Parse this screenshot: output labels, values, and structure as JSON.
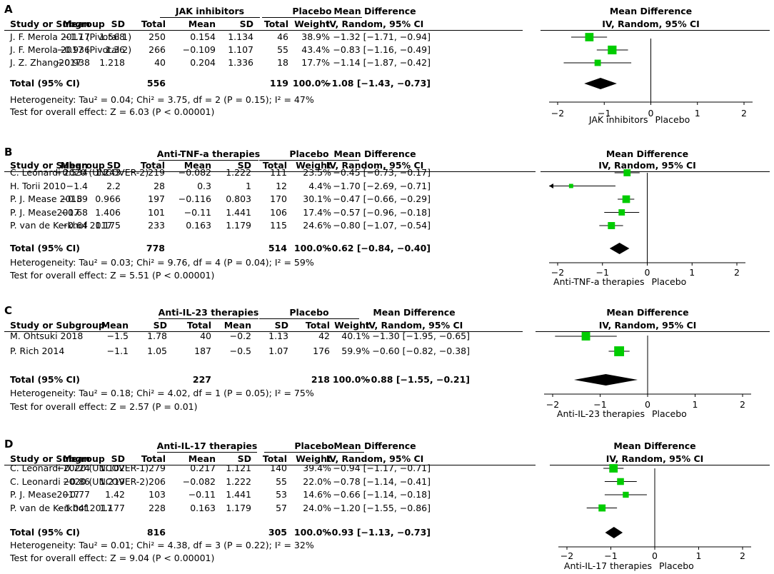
{
  "colors": {
    "marker": "#00cc00",
    "line": "#000000",
    "diamond": "#000000"
  },
  "panels": [
    {
      "label": "A",
      "group1": "JAK inhibitors",
      "group2": "Placebo",
      "study_col": "Study or Subgroup",
      "mean_col": "Mean",
      "sd_col": "SD",
      "total_col": "Total",
      "weight_col": "Weight",
      "md_col1": "Mean Difference",
      "md_col2": "IV, Random, 95% CI",
      "plot_title1": "Mean Difference",
      "plot_title2": "IV, Random, 95% CI",
      "studies": [
        {
          "name": "J. F. Merola 2017 (Pivotal 1)",
          "m1": "−1.17",
          "sd1": "1.568",
          "n1": "250",
          "m2": "0.154",
          "sd2": "1.134",
          "n2": "46",
          "weight": "38.9%",
          "ci": "−1.32 [−1.71, −0.94]",
          "est": -1.32,
          "lo": -1.71,
          "hi": -0.94,
          "w": 38.9
        },
        {
          "name": "J. F. Merola 2017 (Pivotal 2)",
          "m1": "−0.936",
          "sd1": "1.36",
          "n1": "266",
          "m2": "−0.109",
          "sd2": "1.107",
          "n2": "55",
          "weight": "43.4%",
          "ci": "−0.83 [−1.16, −0.49]",
          "est": -0.83,
          "lo": -1.16,
          "hi": -0.49,
          "w": 43.4
        },
        {
          "name": "J. Z. Zhang2017",
          "m1": "−0.938",
          "sd1": "1.218",
          "n1": "40",
          "m2": "0.204",
          "sd2": "1.336",
          "n2": "18",
          "weight": "17.7%",
          "ci": "−1.14 [−1.87, −0.42]",
          "est": -1.14,
          "lo": -1.87,
          "hi": -0.42,
          "w": 17.7
        }
      ],
      "total_label": "Total (95% CI)",
      "total_n1": "556",
      "total_n2": "119",
      "total_weight": "100.0%",
      "total_ci": "−1.08 [−1.43, −0.73]",
      "total_est": -1.08,
      "total_lo": -1.43,
      "total_hi": -0.73,
      "heterogeneity": "Heterogeneity: Tau² = 0.04; Chi² = 3.75, df = 2 (P = 0.15); I² = 47%",
      "overall": "Test for overall effect: Z = 6.03 (P < 0.00001)",
      "ticks": [
        "−2",
        "−1",
        "0",
        "1",
        "2"
      ],
      "favors_left": "JAK inhibitors",
      "favors_right": "Placebo"
    },
    {
      "label": "B",
      "group1": "Anti-TNF-a therapies",
      "group2": "Placebo",
      "study_col": "Study or Subgroup",
      "mean_col": "Mean",
      "sd_col": "SD",
      "total_col": "Total",
      "weight_col": "Weight",
      "md_col1": "Mean Difference",
      "md_col2": "IV, Random, 95% CI",
      "plot_title1": "Mean Difference",
      "plot_title2": "IV, Random, 95% CI",
      "studies": [
        {
          "name": "C. Leonardi 2020 (UNCOVER-2)",
          "m1": "−0.534",
          "sd1": "1.243",
          "n1": "219",
          "m2": "−0.082",
          "sd2": "1.222",
          "n2": "111",
          "weight": "23.5%",
          "ci": "−0.45 [−0.73, −0.17]",
          "est": -0.45,
          "lo": -0.73,
          "hi": -0.17,
          "w": 23.5
        },
        {
          "name": "H. Torii 2010",
          "m1": "−1.4",
          "sd1": "2.2",
          "n1": "28",
          "m2": "0.3",
          "sd2": "1",
          "n2": "12",
          "weight": "4.4%",
          "ci": "−1.70 [−2.69, −0.71]",
          "est": -1.7,
          "lo": -2.69,
          "hi": -0.71,
          "w": 4.4
        },
        {
          "name": "P. J. Mease 2018",
          "m1": "−0.59",
          "sd1": "0.966",
          "n1": "197",
          "m2": "−0.116",
          "sd2": "0.803",
          "n2": "170",
          "weight": "30.1%",
          "ci": "−0.47 [−0.66, −0.29]",
          "est": -0.47,
          "lo": -0.66,
          "hi": -0.29,
          "w": 30.1
        },
        {
          "name": "P. J. Mease2017",
          "m1": "−0.68",
          "sd1": "1.406",
          "n1": "101",
          "m2": "−0.11",
          "sd2": "1.441",
          "n2": "106",
          "weight": "17.4%",
          "ci": "−0.57 [−0.96, −0.18]",
          "est": -0.57,
          "lo": -0.96,
          "hi": -0.18,
          "w": 17.4
        },
        {
          "name": "P. van de Kerkhof 2017",
          "m1": "−0.64",
          "sd1": "1.175",
          "n1": "233",
          "m2": "0.163",
          "sd2": "1.179",
          "n2": "115",
          "weight": "24.6%",
          "ci": "−0.80 [−1.07, −0.54]",
          "est": -0.8,
          "lo": -1.07,
          "hi": -0.54,
          "w": 24.6
        }
      ],
      "total_label": "Total (95% CI)",
      "total_n1": "778",
      "total_n2": "514",
      "total_weight": "100.0%",
      "total_ci": "−0.62 [−0.84, −0.40]",
      "total_est": -0.62,
      "total_lo": -0.84,
      "total_hi": -0.4,
      "heterogeneity": "Heterogeneity: Tau² = 0.03; Chi² = 9.76, df = 4 (P = 0.04); I² = 59%",
      "overall": "Test for overall effect: Z = 5.51 (P < 0.00001)",
      "ticks": [
        "−2",
        "−1",
        "0",
        "1",
        "2"
      ],
      "favors_left": "Anti-TNF-a therapies",
      "favors_right": "Placebo"
    },
    {
      "label": "C",
      "group1": "Anti-IL-23 therapies",
      "group2": "Placebo",
      "study_col": "Study or Subgroup",
      "mean_col": "Mean",
      "sd_col": "SD",
      "total_col": "Total",
      "weight_col": "Weight",
      "md_col1": "Mean Difference",
      "md_col2": "IV, Random, 95% CI",
      "plot_title1": "Mean Difference",
      "plot_title2": "IV, Random, 95% CI",
      "studies": [
        {
          "name": "M. Ohtsuki 2018",
          "m1": "−1.5",
          "sd1": "1.78",
          "n1": "40",
          "m2": "−0.2",
          "sd2": "1.13",
          "n2": "42",
          "weight": "40.1%",
          "ci": "−1.30 [−1.95, −0.65]",
          "est": -1.3,
          "lo": -1.95,
          "hi": -0.65,
          "w": 40.1
        },
        {
          "name": "P. Rich 2014",
          "m1": "−1.1",
          "sd1": "1.05",
          "n1": "187",
          "m2": "−0.5",
          "sd2": "1.07",
          "n2": "176",
          "weight": "59.9%",
          "ci": "−0.60 [−0.82, −0.38]",
          "est": -0.6,
          "lo": -0.82,
          "hi": -0.38,
          "w": 59.9
        }
      ],
      "total_label": "Total (95% CI)",
      "total_n1": "227",
      "total_n2": "218",
      "total_weight": "100.0%",
      "total_ci": "−0.88 [−1.55, −0.21]",
      "total_est": -0.88,
      "total_lo": -1.55,
      "total_hi": -0.21,
      "heterogeneity": "Heterogeneity: Tau² = 0.18; Chi² = 4.02, df = 1 (P = 0.05); I² = 75%",
      "overall": "Test for overall effect: Z = 2.57 (P = 0.01)",
      "ticks": [
        "−2",
        "−1",
        "0",
        "1",
        "2"
      ],
      "favors_left": "Anti-IL-23 therapies",
      "favors_right": "Placebo"
    },
    {
      "label": "D",
      "group1": "Anti-IL-17 therapies",
      "group2": "Placebo",
      "study_col": "Study or Subgroup",
      "mean_col": "Mean",
      "sd_col": "SD",
      "total_col": "Total",
      "weight_col": "Weight",
      "md_col1": "Mean Difference",
      "md_col2": "IV, Random, 95% CI",
      "plot_title1": "Mean Difference",
      "plot_title2": "IV, Random, 95% CI",
      "studies": [
        {
          "name": "C. Leonardi 2020 (UNCOVER-1)",
          "m1": "−0.724",
          "sd1": "1.102",
          "n1": "279",
          "m2": "0.217",
          "sd2": "1.121",
          "n2": "140",
          "weight": "39.4%",
          "ci": "−0.94 [−1.17, −0.71]",
          "est": -0.94,
          "lo": -1.17,
          "hi": -0.71,
          "w": 39.4
        },
        {
          "name": "C. Leonardi 2020 (UNCOVER-2)",
          "m1": "−0.86",
          "sd1": "1.219",
          "n1": "206",
          "m2": "−0.082",
          "sd2": "1.222",
          "n2": "55",
          "weight": "22.0%",
          "ci": "−0.78 [−1.14, −0.41]",
          "est": -0.78,
          "lo": -1.14,
          "hi": -0.41,
          "w": 22.0
        },
        {
          "name": "P. J. Mease2017",
          "m1": "−0.77",
          "sd1": "1.42",
          "n1": "103",
          "m2": "−0.11",
          "sd2": "1.441",
          "n2": "53",
          "weight": "14.6%",
          "ci": "−0.66 [−1.14, −0.18]",
          "est": -0.66,
          "lo": -1.14,
          "hi": -0.18,
          "w": 14.6
        },
        {
          "name": "P. van de Kerkhof 2017",
          "m1": "−1.041",
          "sd1": "1.177",
          "n1": "228",
          "m2": "0.163",
          "sd2": "1.179",
          "n2": "57",
          "weight": "24.0%",
          "ci": "−1.20 [−1.55, −0.86]",
          "est": -1.2,
          "lo": -1.55,
          "hi": -0.86,
          "w": 24.0
        }
      ],
      "total_label": "Total (95% CI)",
      "total_n1": "816",
      "total_n2": "305",
      "total_weight": "100.0%",
      "total_ci": "−0.93 [−1.13, −0.73]",
      "total_est": -0.93,
      "total_lo": -1.13,
      "total_hi": -0.73,
      "heterogeneity": "Heterogeneity: Tau² = 0.01; Chi² = 4.38, df = 3 (P = 0.22); I² = 32%",
      "overall": "Test for overall effect: Z = 9.04 (P < 0.00001)",
      "ticks": [
        "−2",
        "−1",
        "0",
        "1",
        "2"
      ],
      "favors_left": "Anti-IL-17 therapies",
      "favors_right": "Placebo"
    }
  ],
  "chart_data": [
    {
      "type": "forest",
      "panel": "A",
      "xlim": [
        -2,
        2
      ],
      "xticks": [
        -2,
        -1,
        0,
        1,
        2
      ],
      "series": [
        {
          "name": "J. F. Merola 2017 (Pivotal 1)",
          "value": -1.32,
          "ci": [
            -1.71,
            -0.94
          ]
        },
        {
          "name": "J. F. Merola 2017 (Pivotal 2)",
          "value": -0.83,
          "ci": [
            -1.16,
            -0.49
          ]
        },
        {
          "name": "J. Z. Zhang2017",
          "value": -1.14,
          "ci": [
            -1.87,
            -0.42
          ]
        },
        {
          "name": "Total (95% CI)",
          "value": -1.08,
          "ci": [
            -1.43,
            -0.73
          ]
        }
      ]
    },
    {
      "type": "forest",
      "panel": "B",
      "xlim": [
        -2,
        2
      ],
      "xticks": [
        -2,
        -1,
        0,
        1,
        2
      ],
      "series": [
        {
          "name": "C. Leonardi 2020 (UNCOVER-2)",
          "value": -0.45,
          "ci": [
            -0.73,
            -0.17
          ]
        },
        {
          "name": "H. Torii 2010",
          "value": -1.7,
          "ci": [
            -2.69,
            -0.71
          ]
        },
        {
          "name": "P. J. Mease 2018",
          "value": -0.47,
          "ci": [
            -0.66,
            -0.29
          ]
        },
        {
          "name": "P. J. Mease2017",
          "value": -0.57,
          "ci": [
            -0.96,
            -0.18
          ]
        },
        {
          "name": "P. van de Kerkhof 2017",
          "value": -0.8,
          "ci": [
            -1.07,
            -0.54
          ]
        },
        {
          "name": "Total (95% CI)",
          "value": -0.62,
          "ci": [
            -0.84,
            -0.4
          ]
        }
      ]
    },
    {
      "type": "forest",
      "panel": "C",
      "xlim": [
        -2,
        2
      ],
      "xticks": [
        -2,
        -1,
        0,
        1,
        2
      ],
      "series": [
        {
          "name": "M. Ohtsuki 2018",
          "value": -1.3,
          "ci": [
            -1.95,
            -0.65
          ]
        },
        {
          "name": "P. Rich 2014",
          "value": -0.6,
          "ci": [
            -0.82,
            -0.38
          ]
        },
        {
          "name": "Total (95% CI)",
          "value": -0.88,
          "ci": [
            -1.55,
            -0.21
          ]
        }
      ]
    },
    {
      "type": "forest",
      "panel": "D",
      "xlim": [
        -2,
        2
      ],
      "xticks": [
        -2,
        -1,
        0,
        1,
        2
      ],
      "series": [
        {
          "name": "C. Leonardi 2020 (UNCOVER-1)",
          "value": -0.94,
          "ci": [
            -1.17,
            -0.71
          ]
        },
        {
          "name": "C. Leonardi 2020 (UNCOVER-2)",
          "value": -0.78,
          "ci": [
            -1.14,
            -0.41
          ]
        },
        {
          "name": "P. J. Mease2017",
          "value": -0.66,
          "ci": [
            -1.14,
            -0.18
          ]
        },
        {
          "name": "P. van de Kerkhof 2017",
          "value": -1.2,
          "ci": [
            -1.55,
            -0.86
          ]
        },
        {
          "name": "Total (95% CI)",
          "value": -0.93,
          "ci": [
            -1.13,
            -0.73
          ]
        }
      ]
    }
  ]
}
